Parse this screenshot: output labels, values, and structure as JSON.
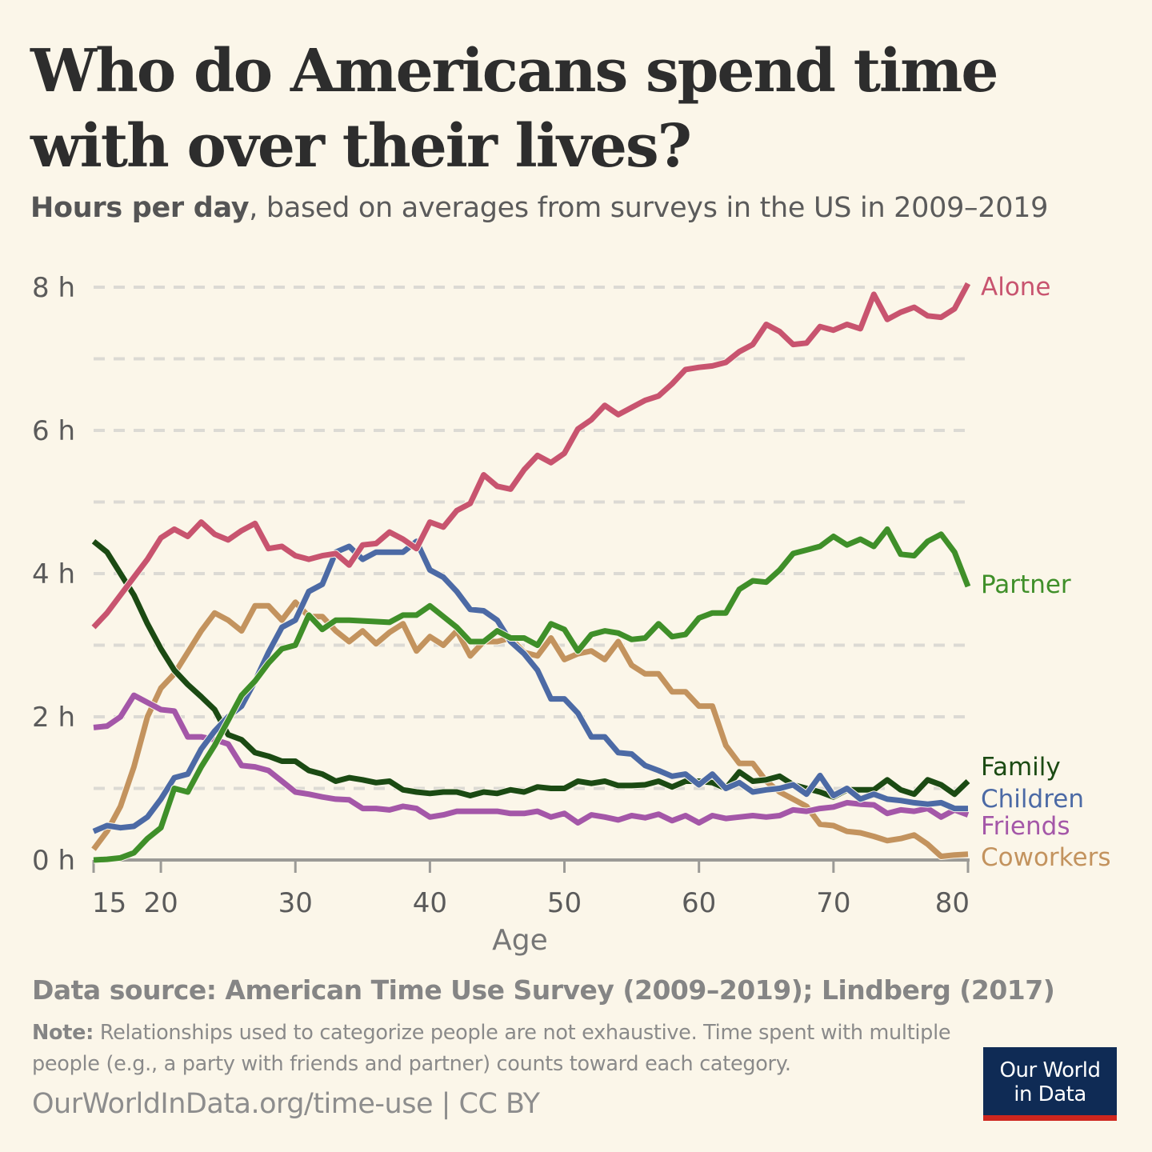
{
  "title": "Who do Americans spend time with over their lives?",
  "subtitle_bold": "Hours per day",
  "subtitle_rest": ", based on averages from surveys in the US in 2009–2019",
  "footer": {
    "source": "Data source: American Time Use Survey (2009–2019); Lindberg (2017)",
    "note_label": "Note:",
    "note_text": " Relationships used to categorize people are not exhaustive. Time spent with multiple people (e.g., a party with friends and partner) counts toward each category.",
    "url": "OurWorldInData.org/time-use | CC BY",
    "logo_line1": "Our World",
    "logo_line2": "in Data"
  },
  "colors": {
    "background": "#fbf6e9",
    "logo_bg": "#0f2b55",
    "logo_stripe": "#ce261e"
  },
  "chart_data": {
    "type": "line",
    "title": "Who do Americans spend time with over their lives?",
    "xlabel": "Age",
    "ylabel": "",
    "xlim": [
      15,
      80
    ],
    "ylim": [
      0,
      8
    ],
    "x_ticks": [
      15,
      20,
      30,
      40,
      50,
      60,
      70,
      80
    ],
    "y_ticks": [
      {
        "value": 0,
        "label": "0 h"
      },
      {
        "value": 2,
        "label": "2 h"
      },
      {
        "value": 4,
        "label": "4 h"
      },
      {
        "value": 6,
        "label": "6 h"
      },
      {
        "value": 8,
        "label": "8 h"
      }
    ],
    "grid": "horizontal dashed, every 1 h",
    "legend": "inline labels at right end of lines",
    "x_start": 15,
    "series": [
      {
        "name": "Coworkers",
        "color": "#c3935e",
        "values": [
          0.15,
          0.4,
          0.75,
          1.3,
          2.0,
          2.4,
          2.6,
          2.9,
          3.2,
          3.45,
          3.35,
          3.2,
          3.55,
          3.55,
          3.35,
          3.6,
          3.4,
          3.4,
          3.2,
          3.05,
          3.2,
          3.02,
          3.18,
          3.3,
          2.92,
          3.12,
          3.0,
          3.2,
          2.85,
          3.05,
          3.05,
          3.1,
          2.9,
          2.85,
          3.1,
          2.8,
          2.88,
          2.92,
          2.8,
          3.05,
          2.72,
          2.6,
          2.6,
          2.35,
          2.35,
          2.15,
          2.15,
          1.6,
          1.35,
          1.35,
          1.1,
          0.95,
          0.85,
          0.75,
          0.5,
          0.48,
          0.4,
          0.38,
          0.33,
          0.27,
          0.3,
          0.35,
          0.22,
          0.05,
          0.07,
          0.08
        ]
      },
      {
        "name": "Friends",
        "color": "#a457a8",
        "values": [
          1.85,
          1.87,
          2.0,
          2.3,
          2.2,
          2.1,
          2.08,
          1.72,
          1.72,
          1.68,
          1.62,
          1.32,
          1.3,
          1.25,
          1.1,
          0.95,
          0.92,
          0.88,
          0.85,
          0.84,
          0.72,
          0.72,
          0.7,
          0.75,
          0.72,
          0.6,
          0.63,
          0.68,
          0.68,
          0.68,
          0.68,
          0.65,
          0.65,
          0.68,
          0.6,
          0.65,
          0.52,
          0.63,
          0.6,
          0.56,
          0.62,
          0.59,
          0.64,
          0.55,
          0.62,
          0.52,
          0.62,
          0.58,
          0.6,
          0.62,
          0.6,
          0.62,
          0.7,
          0.68,
          0.72,
          0.74,
          0.8,
          0.78,
          0.77,
          0.65,
          0.7,
          0.68,
          0.72,
          0.6,
          0.7,
          0.63
        ]
      },
      {
        "name": "Family",
        "color": "#1b4a13",
        "values": [
          4.45,
          4.3,
          4.0,
          3.7,
          3.3,
          2.95,
          2.65,
          2.45,
          2.28,
          2.1,
          1.75,
          1.68,
          1.5,
          1.45,
          1.38,
          1.38,
          1.25,
          1.2,
          1.1,
          1.15,
          1.12,
          1.08,
          1.1,
          0.98,
          0.95,
          0.93,
          0.95,
          0.95,
          0.9,
          0.95,
          0.93,
          0.98,
          0.95,
          1.02,
          1.0,
          1.0,
          1.1,
          1.07,
          1.1,
          1.04,
          1.04,
          1.05,
          1.1,
          1.02,
          1.1,
          1.1,
          1.08,
          1.0,
          1.23,
          1.1,
          1.12,
          1.17,
          1.05,
          1.0,
          0.95,
          0.88,
          0.98,
          0.98,
          0.98,
          1.12,
          0.98,
          0.92,
          1.12,
          1.05,
          0.92,
          1.1
        ]
      },
      {
        "name": "Children",
        "color": "#4c6aa5",
        "values": [
          0.4,
          0.48,
          0.45,
          0.47,
          0.6,
          0.85,
          1.15,
          1.2,
          1.55,
          1.8,
          2.0,
          2.15,
          2.5,
          2.9,
          3.25,
          3.35,
          3.75,
          3.85,
          4.3,
          4.38,
          4.2,
          4.3,
          4.3,
          4.3,
          4.45,
          4.05,
          3.95,
          3.75,
          3.5,
          3.48,
          3.35,
          3.05,
          2.88,
          2.65,
          2.25,
          2.25,
          2.05,
          1.72,
          1.72,
          1.5,
          1.48,
          1.32,
          1.25,
          1.17,
          1.2,
          1.05,
          1.2,
          1.0,
          1.08,
          0.95,
          0.98,
          1.0,
          1.05,
          0.92,
          1.18,
          0.9,
          1.0,
          0.85,
          0.92,
          0.85,
          0.83,
          0.8,
          0.78,
          0.8,
          0.72,
          0.72
        ]
      },
      {
        "name": "Partner",
        "color": "#3f8f29",
        "values": [
          0.0,
          0.01,
          0.03,
          0.1,
          0.3,
          0.45,
          1.0,
          0.95,
          1.3,
          1.6,
          1.95,
          2.3,
          2.5,
          2.75,
          2.95,
          3.0,
          3.42,
          3.22,
          3.35,
          3.35,
          3.34,
          3.33,
          3.32,
          3.42,
          3.42,
          3.55,
          3.4,
          3.25,
          3.05,
          3.05,
          3.2,
          3.1,
          3.1,
          3.0,
          3.3,
          3.22,
          2.92,
          3.15,
          3.2,
          3.17,
          3.08,
          3.1,
          3.3,
          3.12,
          3.15,
          3.38,
          3.45,
          3.45,
          3.78,
          3.9,
          3.88,
          4.05,
          4.28,
          4.33,
          4.38,
          4.52,
          4.4,
          4.48,
          4.38,
          4.62,
          4.27,
          4.25,
          4.45,
          4.55,
          4.3,
          3.82
        ]
      },
      {
        "name": "Alone",
        "color": "#c8546f",
        "values": [
          3.25,
          3.45,
          3.7,
          3.95,
          4.2,
          4.5,
          4.62,
          4.52,
          4.72,
          4.55,
          4.47,
          4.6,
          4.7,
          4.35,
          4.38,
          4.25,
          4.2,
          4.25,
          4.28,
          4.12,
          4.4,
          4.42,
          4.58,
          4.48,
          4.35,
          4.72,
          4.65,
          4.88,
          4.98,
          5.38,
          5.22,
          5.18,
          5.45,
          5.65,
          5.55,
          5.68,
          6.02,
          6.15,
          6.35,
          6.22,
          6.32,
          6.42,
          6.48,
          6.65,
          6.85,
          6.88,
          6.9,
          6.95,
          7.1,
          7.2,
          7.48,
          7.38,
          7.2,
          7.22,
          7.45,
          7.4,
          7.48,
          7.42,
          7.9,
          7.55,
          7.65,
          7.72,
          7.6,
          7.58,
          7.7,
          8.05
        ]
      }
    ]
  }
}
